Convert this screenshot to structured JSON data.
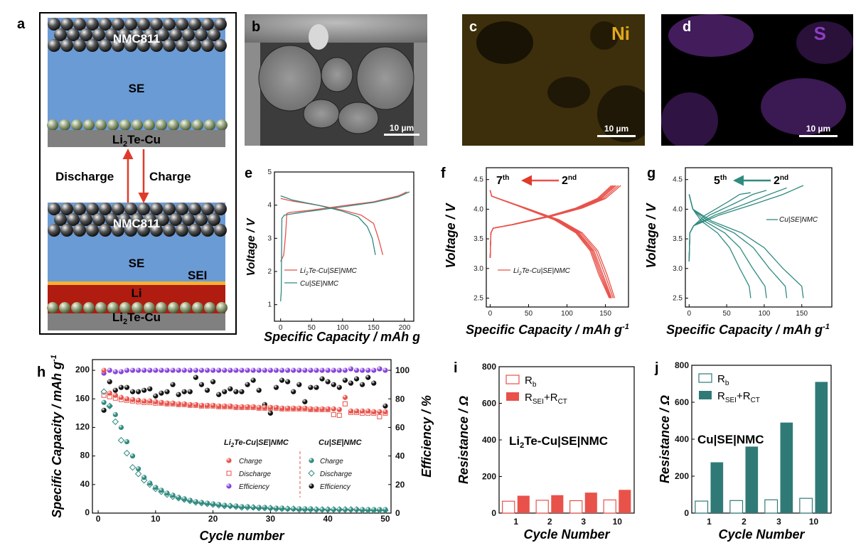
{
  "panels": {
    "a": {
      "label": "a",
      "top_cathode": "NMC811",
      "top_se": "SE",
      "top_collector": "Li",
      "top_collector_sub": "2",
      "top_collector_rest": "Te-Cu",
      "discharge": "Discharge",
      "charge": "Charge",
      "bot_cathode": "NMC811",
      "bot_se": "SE",
      "sei": "SEI",
      "li": "Li",
      "bot_collector": "Li",
      "bot_collector_sub": "2",
      "bot_collector_rest": "Te-Cu",
      "colors": {
        "se": "#6b9bd4",
        "li": "#b01c10",
        "sei": "#f2b233",
        "collector": "#808080",
        "sphere": "#555555",
        "sphere_green": "#8f9e78"
      }
    },
    "b": {
      "label": "b",
      "scale": "10 µm"
    },
    "c": {
      "label": "c",
      "element": "Ni",
      "scale": "10 µm",
      "color": "#e0a81a"
    },
    "d": {
      "label": "d",
      "element": "S",
      "scale": "10 µm",
      "color": "#8e3cc4"
    }
  },
  "chart_data": [
    {
      "panel": "e",
      "type": "line",
      "xlabel": "Specific Capacity / mAh g",
      "xlabel_sup": "-1",
      "ylabel": "Voltage / V",
      "xlim": [
        -10,
        215
      ],
      "ylim": [
        0.5,
        5
      ],
      "xticks": [
        0,
        50,
        100,
        150,
        200
      ],
      "yticks": [
        1,
        2,
        3,
        4,
        5
      ],
      "series": [
        {
          "name": "Li2Te-Cu|SE|NMC",
          "legend_main": "Li",
          "legend_sub": "2",
          "legend_rest": "Te-Cu|SE|NMC",
          "color": "#e8524a",
          "charge": [
            [
              0,
              2.3
            ],
            [
              5,
              2.5
            ],
            [
              8,
              3.1
            ],
            [
              10,
              3.75
            ],
            [
              15,
              3.78
            ],
            [
              50,
              3.85
            ],
            [
              100,
              3.98
            ],
            [
              150,
              4.1
            ],
            [
              190,
              4.28
            ],
            [
              204,
              4.4
            ]
          ],
          "discharge": [
            [
              0,
              4.2
            ],
            [
              20,
              4.12
            ],
            [
              60,
              4.0
            ],
            [
              100,
              3.85
            ],
            [
              130,
              3.7
            ],
            [
              150,
              3.45
            ],
            [
              158,
              3.0
            ],
            [
              165,
              2.5
            ]
          ]
        },
        {
          "name": "Cu|SE|NMC",
          "legend": "Cu|SE|NMC",
          "color": "#2f8a80",
          "charge": [
            [
              0,
              1.1
            ],
            [
              1,
              1.4
            ],
            [
              2,
              3.6
            ],
            [
              6,
              3.7
            ],
            [
              40,
              3.8
            ],
            [
              100,
              3.95
            ],
            [
              150,
              4.08
            ],
            [
              190,
              4.25
            ],
            [
              208,
              4.4
            ]
          ],
          "discharge": [
            [
              0,
              4.28
            ],
            [
              20,
              4.15
            ],
            [
              60,
              4.0
            ],
            [
              100,
              3.82
            ],
            [
              125,
              3.65
            ],
            [
              140,
              3.35
            ],
            [
              148,
              3.0
            ],
            [
              153,
              2.5
            ]
          ]
        }
      ]
    },
    {
      "panel": "f",
      "type": "line",
      "xlabel": "Specific Capacity / mAh g",
      "xlabel_sup": "-1",
      "ylabel": "Voltage / V",
      "xlim": [
        -5,
        180
      ],
      "ylim": [
        2.35,
        4.7
      ],
      "xticks": [
        0,
        50,
        100,
        150
      ],
      "yticks": [
        2.5,
        3.0,
        3.5,
        4.0,
        4.5
      ],
      "annotation": {
        "from": "2",
        "from_sup": "nd",
        "to": "7",
        "to_sup": "th"
      },
      "series": [
        {
          "name": "Li2Te-Cu|SE|NMC",
          "legend_main": "Li",
          "legend_sub": "2",
          "legend_rest": "Te-Cu|SE|NMC",
          "color": "#e8524a",
          "cycles_charge_end": [
            170,
            167,
            164,
            162,
            160,
            158
          ],
          "cycles_discharge_end": [
            170,
            167,
            164,
            162,
            160,
            158
          ]
        }
      ]
    },
    {
      "panel": "g",
      "type": "line",
      "xlabel": "Specific Capacity / mAh g",
      "xlabel_sup": "-1",
      "ylabel": "Voltage / V",
      "xlim": [
        -5,
        190
      ],
      "ylim": [
        2.35,
        4.7
      ],
      "xticks": [
        0,
        50,
        100,
        150
      ],
      "yticks": [
        2.5,
        3.0,
        3.5,
        4.0,
        4.5
      ],
      "annotation": {
        "from": "2",
        "from_sup": "nd",
        "to": "5",
        "to_sup": "th"
      },
      "series": [
        {
          "name": "Cu|SE|NMC",
          "legend": "Cu|SE|NMC",
          "color": "#2f8a80",
          "charge_ends": [
            152,
            130,
            103,
            82
          ],
          "discharge_ends": [
            152,
            130,
            103,
            80
          ]
        }
      ]
    },
    {
      "panel": "h",
      "type": "scatter",
      "xlabel": "Cycle number",
      "ylabel": "Specific Capacity / mAh g",
      "ylabel_sup": "-1",
      "y2label": "Efficiency / %",
      "xlim": [
        -1,
        51
      ],
      "ylim": [
        0,
        215
      ],
      "y2lim": [
        0,
        107.5
      ],
      "xticks": [
        0,
        10,
        20,
        30,
        40,
        50
      ],
      "yticks": [
        0,
        40,
        80,
        120,
        160,
        200
      ],
      "y2ticks": [
        0,
        20,
        40,
        60,
        80,
        100
      ],
      "legend_group1": "Li2Te-Cu|SE|NMC",
      "legend_group1_main": "Li",
      "legend_group1_sub": "2",
      "legend_group1_rest": "Te-Cu|SE|NMC",
      "legend_group2": "Cu|SE|NMC",
      "legend_charge": "Charge",
      "legend_discharge": "Discharge",
      "legend_efficiency": "Efficiency",
      "series": [
        {
          "name": "LiTe Charge",
          "color": "#e8524a",
          "values": [
            200,
            168,
            165,
            162,
            160,
            159,
            158,
            157,
            157,
            156,
            155,
            154,
            154,
            153,
            153,
            152,
            152,
            151,
            151,
            151,
            150,
            150,
            150,
            149,
            149,
            149,
            149,
            148,
            148,
            148,
            148,
            147,
            147,
            147,
            147,
            147,
            146,
            146,
            146,
            146,
            146,
            145,
            162,
            143,
            143,
            143,
            143,
            142,
            142,
            142
          ]
        },
        {
          "name": "LiTe Discharge",
          "color": "#e8524a",
          "values": [
            165,
            163,
            161,
            159,
            158,
            157,
            156,
            155,
            155,
            154,
            154,
            153,
            153,
            152,
            152,
            151,
            151,
            150,
            150,
            150,
            149,
            149,
            149,
            148,
            148,
            148,
            148,
            147,
            147,
            147,
            147,
            146,
            146,
            146,
            146,
            146,
            145,
            145,
            145,
            145,
            138,
            137,
            153,
            141,
            141,
            140,
            140,
            140,
            135,
            140
          ]
        },
        {
          "name": "LiTe Efficiency",
          "color": "#8844dd",
          "values": [
            98,
            100,
            99,
            99,
            100,
            100,
            100,
            100,
            100,
            100,
            100,
            100,
            100,
            100,
            100,
            100,
            100,
            100,
            100,
            100,
            100,
            100,
            100,
            100,
            100,
            100,
            100,
            100,
            100,
            100,
            100,
            100,
            100,
            100,
            100,
            100,
            100,
            100,
            100,
            100,
            100,
            100,
            100,
            101,
            100,
            100,
            100,
            100,
            101,
            100
          ]
        },
        {
          "name": "Cu Charge",
          "color": "#2f8a80",
          "values": [
            155,
            150,
            138,
            120,
            100,
            80,
            62,
            50,
            42,
            36,
            32,
            28,
            25,
            22,
            20,
            18,
            16,
            15,
            14,
            13,
            12,
            11,
            10,
            10,
            9,
            9,
            8,
            8,
            8,
            7,
            7,
            7,
            6,
            6,
            6,
            6,
            6,
            5,
            5,
            5,
            5,
            5,
            5,
            5,
            5,
            5,
            5,
            5,
            5,
            5
          ]
        },
        {
          "name": "Cu Discharge",
          "color": "#2f8a80",
          "values": [
            170,
            150,
            128,
            102,
            84,
            64,
            55,
            46,
            40,
            34,
            30,
            26,
            23,
            21,
            19,
            17,
            15,
            14,
            13,
            12,
            11,
            10,
            10,
            9,
            8,
            8,
            8,
            7,
            7,
            7,
            6,
            6,
            6,
            6,
            5,
            5,
            5,
            5,
            5,
            5,
            5,
            5,
            5,
            5,
            5,
            4,
            4,
            4,
            4,
            4
          ]
        },
        {
          "name": "Cu Efficiency",
          "color": "#111111",
          "values": [
            72,
            92,
            86,
            88,
            88,
            85,
            85,
            86,
            87,
            82,
            84,
            85,
            90,
            83,
            85,
            85,
            95,
            90,
            86,
            92,
            83,
            85,
            87,
            85,
            85,
            90,
            93,
            86,
            76,
            70,
            88,
            93,
            92,
            85,
            90,
            78,
            88,
            88,
            94,
            92,
            90,
            88,
            93,
            91,
            94,
            90,
            95,
            91,
            101,
            75
          ]
        }
      ]
    },
    {
      "panel": "i",
      "type": "bar",
      "title": "Li2Te-Cu|SE|NMC",
      "title_main": "Li",
      "title_sub": "2",
      "title_rest": "Te-Cu|SE|NMC",
      "xlabel": "Cycle Number",
      "ylabel": "Resistance / Ω",
      "ylim": [
        0,
        800
      ],
      "yticks": [
        0,
        200,
        400,
        600,
        800
      ],
      "categories": [
        "1",
        "2",
        "3",
        "10"
      ],
      "legend_rb": "R",
      "legend_rb_sub": "b",
      "legend_rsei": "R",
      "legend_rsei_sub": "SEI",
      "legend_plus": "+R",
      "legend_rct_sub": "CT",
      "color": "#e8524a",
      "series": [
        {
          "name": "Rb",
          "values": [
            65,
            70,
            68,
            72
          ]
        },
        {
          "name": "RSEI+RCT",
          "values": [
            95,
            98,
            112,
            127
          ]
        }
      ]
    },
    {
      "panel": "j",
      "type": "bar",
      "title": "Cu|SE|NMC",
      "xlabel": "Cycle Number",
      "ylabel": "Resistance / Ω",
      "ylim": [
        0,
        800
      ],
      "yticks": [
        0,
        200,
        400,
        600,
        800
      ],
      "categories": [
        "1",
        "2",
        "3",
        "10"
      ],
      "legend_rb": "R",
      "legend_rb_sub": "b",
      "legend_rsei": "R",
      "legend_rsei_sub": "SEI",
      "legend_plus": "+R",
      "legend_rct_sub": "CT",
      "color": "#2f7a77",
      "series": [
        {
          "name": "Rb",
          "values": [
            65,
            68,
            72,
            80
          ]
        },
        {
          "name": "RSEI+RCT",
          "values": [
            275,
            360,
            490,
            710
          ]
        }
      ]
    }
  ]
}
